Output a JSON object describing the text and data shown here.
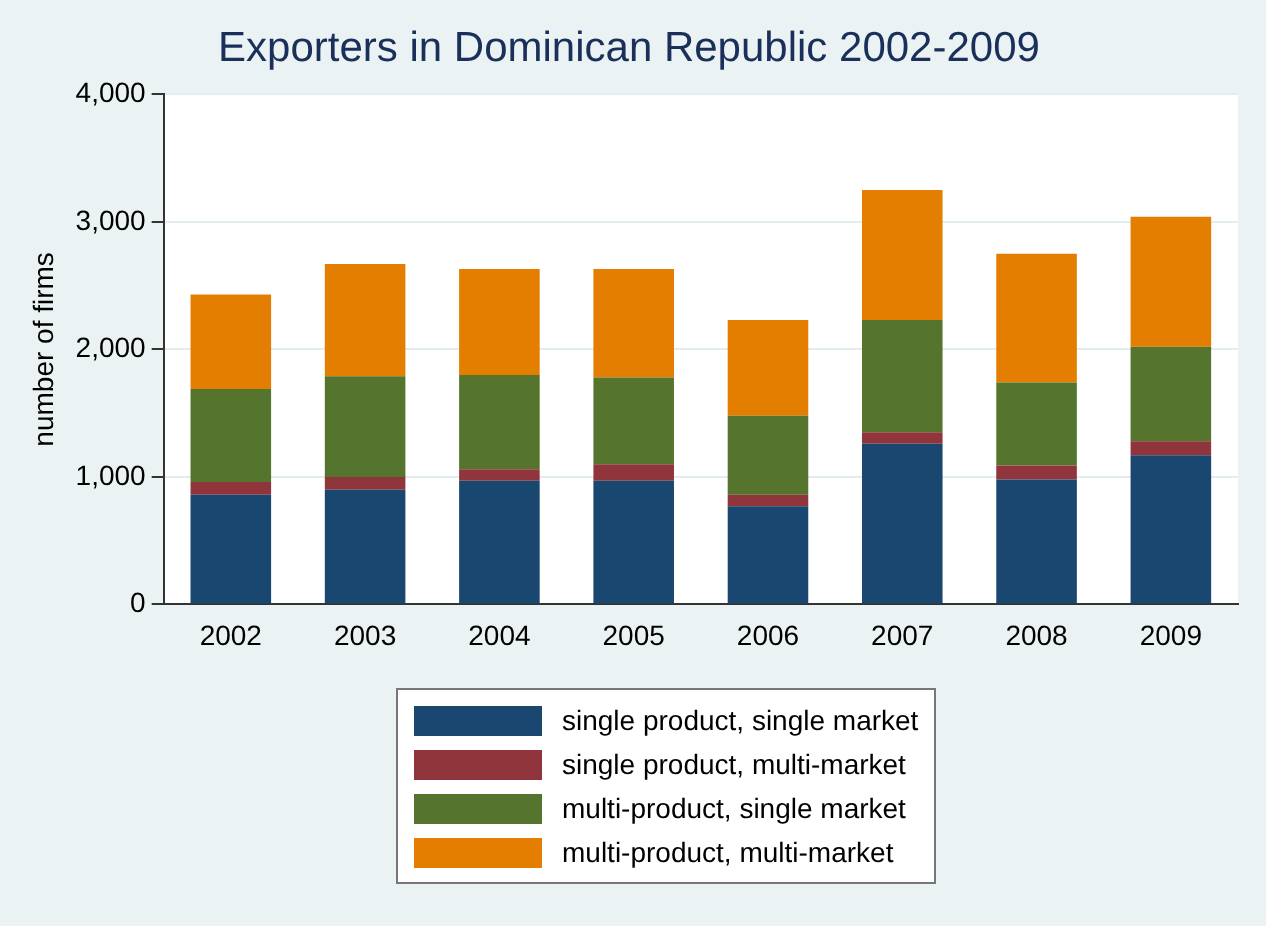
{
  "chart_data": {
    "type": "bar",
    "title": "Exporters in Dominican Republic 2002-2009",
    "ylabel": "number of firms",
    "categories": [
      "2002",
      "2003",
      "2004",
      "2005",
      "2006",
      "2007",
      "2008",
      "2009"
    ],
    "series": [
      {
        "name": "single product, single market",
        "color": "#1a476f",
        "values": [
          860,
          900,
          970,
          970,
          770,
          1260,
          980,
          1170
        ]
      },
      {
        "name": "single product, multi-market",
        "color": "#90353b",
        "values": [
          100,
          100,
          90,
          130,
          90,
          90,
          110,
          110
        ]
      },
      {
        "name": "multi-product, single market",
        "color": "#55752f",
        "values": [
          730,
          790,
          740,
          680,
          620,
          880,
          650,
          740
        ]
      },
      {
        "name": "multi-product, multi-market",
        "color": "#e37e00",
        "values": [
          740,
          880,
          830,
          850,
          750,
          1020,
          1010,
          1020
        ]
      }
    ],
    "stacked": true,
    "ylim": [
      0,
      4000
    ],
    "yticks": [
      {
        "value": 0,
        "label": "0"
      },
      {
        "value": 1000,
        "label": "1,000"
      },
      {
        "value": 2000,
        "label": "2,000"
      },
      {
        "value": 3000,
        "label": "3,000"
      },
      {
        "value": 4000,
        "label": "4,000"
      }
    ],
    "grid": "y",
    "legend": "bottom"
  }
}
